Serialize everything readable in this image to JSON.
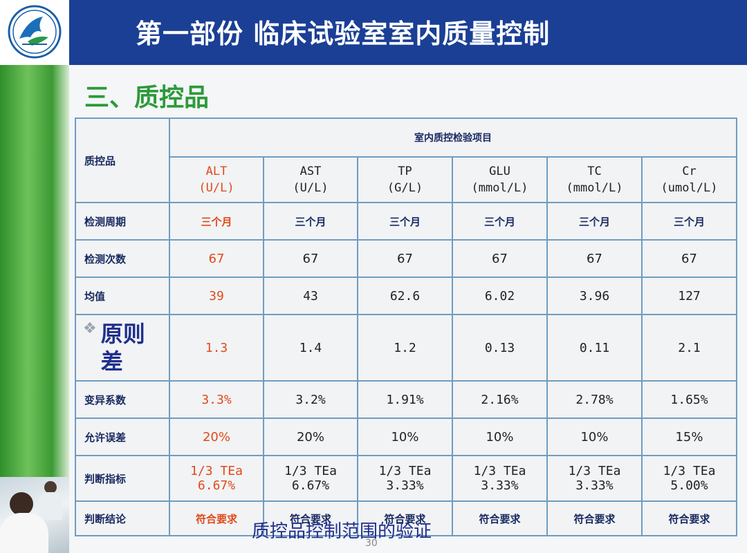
{
  "header": {
    "title": "第一部份  临床试验室室内质量控制"
  },
  "section_title": "三、质控品",
  "table": {
    "corner_label": "质控品",
    "group_header": "室内质控检验项目",
    "columns": [
      {
        "name": "ALT",
        "unit": "(U/L)"
      },
      {
        "name": "AST",
        "unit": "(U/L)"
      },
      {
        "name": "TP",
        "unit": "(G/L)"
      },
      {
        "name": "GLU",
        "unit": "(mmol/L)"
      },
      {
        "name": "TC",
        "unit": "(mmol/L)"
      },
      {
        "name": "Cr",
        "unit": "(umol/L)"
      }
    ],
    "rows": [
      {
        "label": "检测周期",
        "values": [
          "三个月",
          "三个月",
          "三个月",
          "三个月",
          "三个月",
          "三个月"
        ]
      },
      {
        "label": "检测次数",
        "values": [
          "67",
          "67",
          "67",
          "67",
          "67",
          "67"
        ]
      },
      {
        "label": "均值",
        "values": [
          "39",
          "43",
          "62.6",
          "6.02",
          "3.96",
          "127"
        ]
      },
      {
        "label_line1": "原则",
        "label_line2": "差",
        "values": [
          "1.3",
          "1.4",
          "1.2",
          "0.13",
          "0.11",
          "2.1"
        ]
      },
      {
        "label": "变异系数",
        "values": [
          "3.3%",
          "3.2%",
          "1.91%",
          "2.16%",
          "2.78%",
          "1.65%"
        ]
      },
      {
        "label": "允许误差",
        "values": [
          "20%",
          "20%",
          "10%",
          "10%",
          "10%",
          "15%"
        ]
      },
      {
        "label": "判断指标",
        "values_line1": [
          "1/3 TEa",
          "1/3 TEa",
          "1/3 TEa",
          "1/3 TEa",
          "1/3 TEa",
          "1/3 TEa"
        ],
        "values_line2": [
          "6.67%",
          "6.67%",
          "3.33%",
          "3.33%",
          "3.33%",
          "5.00%"
        ]
      },
      {
        "label": "判断结论",
        "values": [
          "符合要求",
          "符合要求",
          "符合要求",
          "符合要求",
          "符合要求",
          "符合要求"
        ]
      }
    ]
  },
  "caption": "质控品控制范围的验证",
  "page_number": "30",
  "colors": {
    "header_bg": "#1a3f95",
    "section_title": "#2d9a3a",
    "highlight_red": "#e04a1a",
    "grid": "#6f9cc0"
  }
}
